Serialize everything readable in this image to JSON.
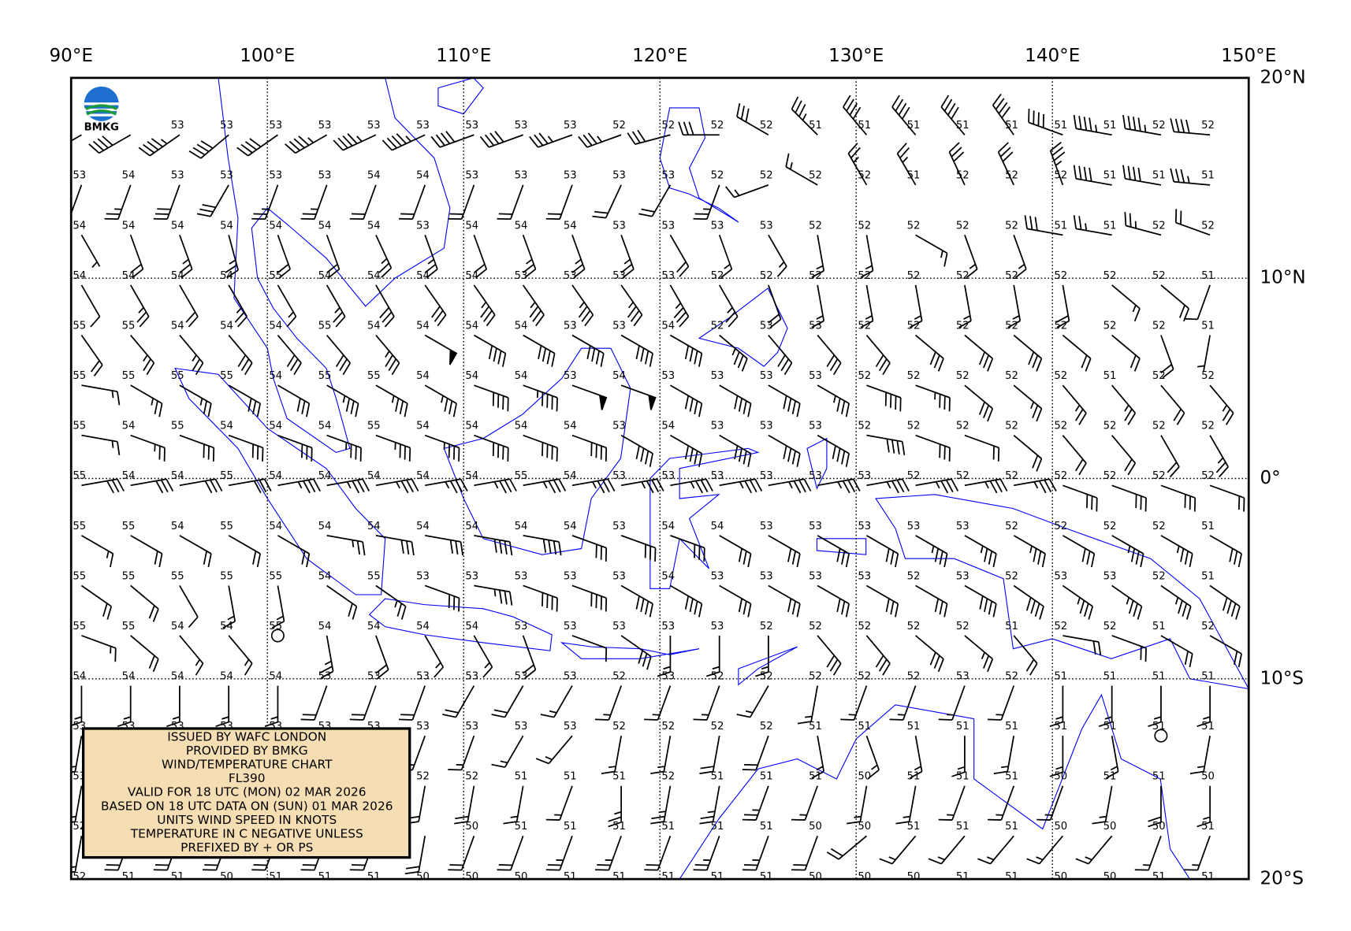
{
  "map": {
    "type": "wind_temperature_map",
    "logo_text": "BMKG",
    "info_box": [
      "ISSUED BY WAFC LONDON",
      "PROVIDED BY BMKG",
      "WIND/TEMPERATURE CHART",
      "FL390",
      "VALID FOR 18 UTC (MON) 02 MAR 2026",
      "BASED ON 18 UTC DATA ON (SUN) 01 MAR 2026",
      "UNITS WIND SPEED IN KNOTS",
      "TEMPERATURE IN C NEGATIVE UNLESS",
      "PREFIXED BY + OR PS"
    ],
    "xlim": [
      90,
      150
    ],
    "ylim": [
      -20,
      20
    ],
    "xticks": [
      {
        "value": 90,
        "label": "90°E"
      },
      {
        "value": 100,
        "label": "100°E"
      },
      {
        "value": 110,
        "label": "110°E"
      },
      {
        "value": 120,
        "label": "120°E"
      },
      {
        "value": 130,
        "label": "130°E"
      },
      {
        "value": 140,
        "label": "140°E"
      },
      {
        "value": 150,
        "label": "150°E"
      }
    ],
    "yticks": [
      {
        "value": 20,
        "label": "20°N"
      },
      {
        "value": 10,
        "label": "10°N"
      },
      {
        "value": 0,
        "label": "0°"
      },
      {
        "value": -10,
        "label": "10°S"
      },
      {
        "value": -20,
        "label": "20°S"
      }
    ],
    "grid": true,
    "coastline_color": "#0000ff",
    "lons": [
      90,
      92.5,
      95,
      97.5,
      100,
      102.5,
      105,
      107.5,
      110,
      112.5,
      115,
      117.5,
      120,
      122.5,
      125,
      127.5,
      130,
      132.5,
      135,
      137.5,
      140,
      142.5,
      145,
      147.5
    ],
    "lats": [
      17.5,
      15,
      12.5,
      10,
      7.5,
      5,
      2.5,
      0,
      -2.5,
      -5,
      -7.5,
      -10,
      -12.5,
      -15,
      -17.5,
      -20
    ],
    "temperature": [
      [
        null,
        null,
        53,
        53,
        53,
        53,
        53,
        53,
        53,
        53,
        53,
        52,
        52,
        52,
        52,
        51,
        51,
        51,
        51,
        51,
        51,
        51,
        52,
        52
      ],
      [
        53,
        54,
        53,
        53,
        53,
        53,
        54,
        54,
        53,
        53,
        53,
        53,
        53,
        52,
        52,
        52,
        52,
        51,
        52,
        52,
        52,
        51,
        51,
        51
      ],
      [
        54,
        54,
        54,
        54,
        54,
        54,
        54,
        53,
        54,
        54,
        54,
        53,
        53,
        53,
        53,
        52,
        52,
        52,
        52,
        52,
        51,
        51,
        52,
        52
      ],
      [
        54,
        54,
        54,
        54,
        55,
        54,
        54,
        54,
        54,
        53,
        53,
        53,
        53,
        52,
        52,
        52,
        52,
        52,
        52,
        52,
        52,
        52,
        52,
        51
      ],
      [
        55,
        55,
        54,
        54,
        54,
        55,
        54,
        54,
        54,
        54,
        53,
        53,
        54,
        52,
        53,
        53,
        52,
        52,
        52,
        52,
        52,
        52,
        52,
        51
      ],
      [
        55,
        55,
        55,
        55,
        54,
        55,
        55,
        54,
        54,
        54,
        53,
        54,
        53,
        53,
        53,
        53,
        52,
        52,
        52,
        52,
        52,
        51,
        52,
        52
      ],
      [
        55,
        54,
        55,
        54,
        54,
        54,
        55,
        54,
        54,
        54,
        54,
        53,
        54,
        53,
        53,
        53,
        52,
        52,
        52,
        52,
        52,
        52,
        52,
        52
      ],
      [
        55,
        54,
        54,
        55,
        54,
        54,
        54,
        54,
        54,
        55,
        54,
        53,
        53,
        53,
        53,
        53,
        53,
        52,
        52,
        52,
        52,
        52,
        52,
        52
      ],
      [
        55,
        55,
        54,
        55,
        54,
        54,
        54,
        54,
        54,
        54,
        54,
        53,
        54,
        54,
        53,
        53,
        53,
        53,
        53,
        52,
        52,
        52,
        52,
        51
      ],
      [
        55,
        55,
        55,
        55,
        55,
        54,
        55,
        53,
        53,
        53,
        53,
        53,
        54,
        53,
        53,
        53,
        53,
        52,
        53,
        52,
        53,
        53,
        52,
        51
      ],
      [
        55,
        55,
        54,
        54,
        55,
        54,
        54,
        54,
        54,
        53,
        53,
        53,
        53,
        53,
        52,
        52,
        52,
        52,
        52,
        51,
        52,
        52,
        51,
        52
      ],
      [
        54,
        54,
        54,
        54,
        54,
        53,
        53,
        53,
        53,
        53,
        53,
        52,
        53,
        52,
        52,
        52,
        52,
        52,
        53,
        52,
        51,
        51,
        51,
        51
      ],
      [
        53,
        53,
        53,
        53,
        53,
        53,
        53,
        53,
        53,
        53,
        53,
        52,
        52,
        52,
        52,
        51,
        51,
        51,
        51,
        51,
        51,
        51,
        51,
        51
      ],
      [
        53,
        null,
        null,
        null,
        null,
        null,
        null,
        52,
        52,
        51,
        51,
        51,
        52,
        51,
        51,
        51,
        50,
        51,
        51,
        51,
        50,
        51,
        51,
        50
      ],
      [
        52,
        null,
        null,
        null,
        null,
        null,
        null,
        null,
        50,
        51,
        51,
        51,
        51,
        51,
        51,
        50,
        50,
        51,
        51,
        51,
        50,
        50,
        50,
        51
      ],
      [
        52,
        51,
        51,
        50,
        51,
        51,
        51,
        50,
        50,
        50,
        51,
        51,
        51,
        51,
        51,
        50,
        50,
        50,
        51,
        51,
        50,
        50,
        51,
        51
      ]
    ],
    "wind_direction": [
      [
        240,
        240,
        235,
        230,
        235,
        240,
        245,
        245,
        250,
        250,
        250,
        250,
        255,
        270,
        300,
        315,
        320,
        320,
        320,
        325,
        290,
        280,
        280,
        275
      ],
      [
        200,
        200,
        200,
        210,
        200,
        200,
        200,
        200,
        200,
        200,
        200,
        205,
        210,
        200,
        250,
        300,
        330,
        330,
        335,
        335,
        340,
        280,
        280,
        275
      ],
      [
        150,
        160,
        160,
        165,
        160,
        160,
        155,
        160,
        160,
        160,
        160,
        160,
        150,
        160,
        150,
        170,
        170,
        120,
        160,
        160,
        280,
        280,
        285,
        290
      ],
      [
        150,
        150,
        150,
        150,
        150,
        150,
        150,
        145,
        145,
        145,
        145,
        145,
        150,
        150,
        160,
        170,
        170,
        170,
        170,
        170,
        170,
        130,
        130,
        200
      ],
      [
        145,
        140,
        140,
        140,
        140,
        140,
        140,
        120,
        120,
        120,
        120,
        120,
        120,
        130,
        140,
        140,
        140,
        130,
        130,
        130,
        130,
        130,
        160,
        190
      ],
      [
        100,
        120,
        120,
        120,
        120,
        120,
        120,
        120,
        110,
        110,
        110,
        110,
        120,
        120,
        120,
        120,
        110,
        110,
        130,
        130,
        140,
        140,
        140,
        140
      ],
      [
        100,
        110,
        110,
        110,
        110,
        110,
        110,
        110,
        110,
        110,
        110,
        120,
        120,
        120,
        120,
        120,
        100,
        110,
        110,
        130,
        140,
        140,
        150,
        150
      ],
      [
        80,
        80,
        80,
        80,
        80,
        80,
        80,
        80,
        80,
        80,
        80,
        80,
        80,
        80,
        80,
        80,
        80,
        80,
        80,
        80,
        110,
        110,
        110,
        110
      ],
      [
        120,
        120,
        120,
        120,
        120,
        100,
        100,
        100,
        100,
        100,
        110,
        110,
        110,
        120,
        120,
        120,
        120,
        120,
        120,
        120,
        120,
        120,
        120,
        120
      ],
      [
        125,
        130,
        150,
        170,
        170,
        125,
        125,
        110,
        100,
        110,
        110,
        120,
        120,
        120,
        120,
        120,
        120,
        120,
        120,
        125,
        125,
        125,
        125,
        125
      ],
      [
        110,
        130,
        140,
        140,
        0,
        170,
        160,
        150,
        150,
        160,
        110,
        125,
        180,
        180,
        180,
        140,
        140,
        130,
        130,
        140,
        100,
        110,
        120,
        120
      ],
      [
        180,
        180,
        180,
        180,
        180,
        200,
        200,
        200,
        210,
        210,
        210,
        200,
        200,
        200,
        210,
        190,
        200,
        200,
        200,
        200,
        180,
        180,
        180,
        180
      ],
      [
        190,
        190,
        200,
        200,
        200,
        210,
        210,
        200,
        200,
        210,
        220,
        190,
        190,
        190,
        200,
        170,
        160,
        170,
        180,
        190,
        180,
        170,
        0,
        190
      ],
      [
        190,
        200,
        200,
        200,
        200,
        200,
        200,
        190,
        190,
        190,
        200,
        180,
        190,
        190,
        200,
        200,
        190,
        190,
        200,
        200,
        200,
        190,
        180,
        180
      ],
      [
        190,
        200,
        200,
        200,
        200,
        200,
        200,
        190,
        200,
        200,
        200,
        200,
        200,
        200,
        200,
        200,
        230,
        220,
        220,
        220,
        220,
        220,
        200,
        200
      ],
      [
        200,
        200,
        200,
        200,
        200,
        200,
        200,
        200,
        200,
        200,
        200,
        200,
        200,
        200,
        200,
        200,
        200,
        200,
        200,
        200,
        200,
        210,
        210,
        210
      ]
    ],
    "wind_speed": [
      [
        35,
        40,
        45,
        40,
        40,
        45,
        45,
        45,
        40,
        40,
        35,
        35,
        30,
        30,
        30,
        35,
        40,
        40,
        40,
        40,
        40,
        45,
        45,
        40
      ],
      [
        20,
        25,
        30,
        30,
        25,
        25,
        20,
        20,
        20,
        20,
        20,
        20,
        20,
        25,
        15,
        15,
        25,
        25,
        30,
        30,
        35,
        40,
        40,
        35
      ],
      [
        5,
        20,
        25,
        25,
        20,
        20,
        25,
        25,
        20,
        25,
        25,
        25,
        20,
        15,
        15,
        15,
        15,
        15,
        15,
        15,
        30,
        25,
        25,
        20
      ],
      [
        10,
        25,
        20,
        25,
        15,
        25,
        30,
        30,
        35,
        35,
        35,
        35,
        35,
        25,
        20,
        15,
        15,
        15,
        15,
        15,
        20,
        15,
        20,
        10
      ],
      [
        20,
        25,
        25,
        30,
        30,
        30,
        35,
        50,
        40,
        40,
        40,
        40,
        40,
        35,
        30,
        30,
        30,
        30,
        30,
        30,
        20,
        20,
        20,
        5
      ],
      [
        15,
        25,
        25,
        30,
        30,
        35,
        35,
        35,
        40,
        45,
        50,
        50,
        40,
        40,
        40,
        35,
        40,
        35,
        30,
        25,
        25,
        25,
        20,
        25
      ],
      [
        15,
        25,
        30,
        30,
        30,
        35,
        35,
        35,
        40,
        40,
        40,
        40,
        40,
        40,
        40,
        40,
        40,
        30,
        20,
        20,
        20,
        20,
        20,
        25
      ],
      [
        30,
        30,
        30,
        30,
        35,
        35,
        35,
        35,
        35,
        35,
        35,
        35,
        35,
        35,
        35,
        35,
        35,
        35,
        35,
        35,
        30,
        30,
        30,
        20
      ],
      [
        15,
        20,
        20,
        20,
        20,
        25,
        30,
        30,
        40,
        40,
        30,
        30,
        30,
        30,
        30,
        30,
        30,
        35,
        35,
        35,
        30,
        35,
        35,
        30
      ],
      [
        20,
        20,
        10,
        15,
        15,
        20,
        25,
        30,
        35,
        40,
        40,
        40,
        40,
        30,
        30,
        30,
        30,
        30,
        40,
        40,
        35,
        35,
        35,
        40
      ],
      [
        15,
        20,
        15,
        15,
        0,
        25,
        20,
        15,
        15,
        20,
        10,
        30,
        15,
        15,
        15,
        30,
        30,
        30,
        25,
        20,
        20,
        20,
        20,
        20
      ],
      [
        15,
        15,
        15,
        15,
        15,
        20,
        20,
        20,
        20,
        20,
        15,
        15,
        15,
        15,
        15,
        15,
        15,
        15,
        15,
        15,
        15,
        15,
        15,
        15
      ],
      [
        15,
        20,
        20,
        20,
        30,
        25,
        20,
        15,
        15,
        15,
        15,
        15,
        15,
        20,
        20,
        15,
        15,
        15,
        15,
        15,
        15,
        15,
        0,
        15
      ],
      [
        20,
        20,
        20,
        20,
        20,
        20,
        20,
        20,
        20,
        15,
        15,
        25,
        25,
        25,
        25,
        15,
        15,
        15,
        15,
        15,
        15,
        15,
        20,
        15
      ],
      [
        20,
        20,
        20,
        20,
        20,
        20,
        20,
        20,
        20,
        20,
        25,
        25,
        20,
        25,
        25,
        20,
        20,
        15,
        15,
        15,
        15,
        15,
        15,
        15
      ],
      [
        20,
        20,
        20,
        20,
        20,
        20,
        20,
        20,
        20,
        20,
        20,
        20,
        20,
        20,
        20,
        20,
        20,
        20,
        20,
        20,
        20,
        15,
        15,
        15
      ]
    ]
  }
}
